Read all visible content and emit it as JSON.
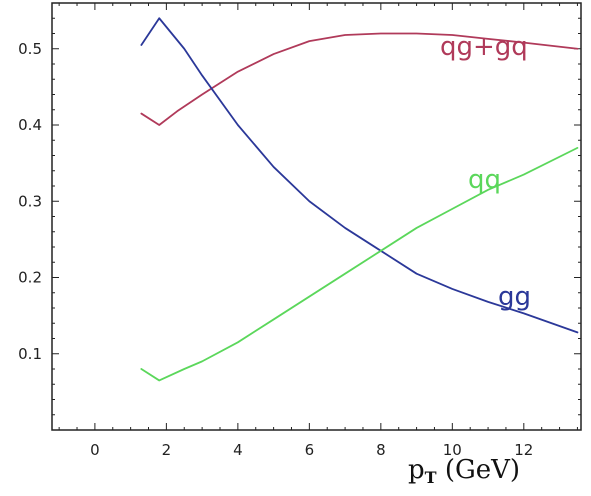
{
  "chart_data": {
    "type": "line",
    "title": "",
    "xlabel": {
      "main": "p",
      "sub": "T",
      "unit": " (GeV)"
    },
    "ylabel": "",
    "xlim": [
      -1.2,
      13.6
    ],
    "ylim": [
      0.0,
      0.56
    ],
    "x_ticks": [
      0,
      2,
      4,
      6,
      8,
      10,
      12
    ],
    "y_ticks": [
      0.1,
      0.2,
      0.3,
      0.4,
      0.5
    ],
    "grid": false,
    "series": [
      {
        "name": "qg+gq",
        "color": "#b03a5a",
        "points": [
          [
            1.3,
            0.415
          ],
          [
            1.8,
            0.4
          ],
          [
            2.3,
            0.418
          ],
          [
            3.0,
            0.44
          ],
          [
            4.0,
            0.47
          ],
          [
            5.0,
            0.493
          ],
          [
            6.0,
            0.51
          ],
          [
            7.0,
            0.518
          ],
          [
            8.0,
            0.52
          ],
          [
            9.0,
            0.52
          ],
          [
            10.0,
            0.518
          ],
          [
            11.0,
            0.513
          ],
          [
            12.0,
            0.508
          ],
          [
            13.5,
            0.5
          ]
        ]
      },
      {
        "name": "gg",
        "color": "#2b3899",
        "points": [
          [
            1.3,
            0.505
          ],
          [
            1.8,
            0.54
          ],
          [
            2.5,
            0.5
          ],
          [
            3.0,
            0.465
          ],
          [
            4.0,
            0.4
          ],
          [
            5.0,
            0.345
          ],
          [
            6.0,
            0.3
          ],
          [
            7.0,
            0.265
          ],
          [
            8.0,
            0.235
          ],
          [
            9.0,
            0.205
          ],
          [
            10.0,
            0.185
          ],
          [
            11.0,
            0.168
          ],
          [
            12.0,
            0.153
          ],
          [
            13.5,
            0.128
          ]
        ]
      },
      {
        "name": "qq",
        "color": "#5bd75b",
        "points": [
          [
            1.3,
            0.08
          ],
          [
            1.8,
            0.065
          ],
          [
            2.5,
            0.08
          ],
          [
            3.0,
            0.09
          ],
          [
            4.0,
            0.115
          ],
          [
            5.0,
            0.145
          ],
          [
            6.0,
            0.175
          ],
          [
            7.0,
            0.205
          ],
          [
            8.0,
            0.235
          ],
          [
            9.0,
            0.265
          ],
          [
            10.0,
            0.29
          ],
          [
            11.0,
            0.315
          ],
          [
            12.0,
            0.335
          ],
          [
            13.5,
            0.37
          ]
        ]
      }
    ]
  }
}
